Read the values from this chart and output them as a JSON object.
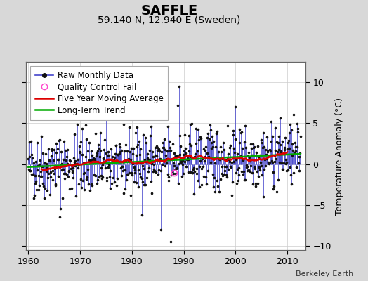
{
  "title": "SAFFLE",
  "subtitle": "59.140 N, 12.940 E (Sweden)",
  "ylabel": "Temperature Anomaly (°C)",
  "credit": "Berkeley Earth",
  "xlim": [
    1959.5,
    2013.5
  ],
  "ylim": [
    -10.5,
    12.5
  ],
  "yticks": [
    -10,
    -5,
    0,
    5,
    10
  ],
  "xticks": [
    1960,
    1970,
    1980,
    1990,
    2000,
    2010
  ],
  "seed": 42,
  "bg_color": "#d8d8d8",
  "plot_bg_color": "#ffffff",
  "raw_line_color": "#4444cc",
  "raw_dot_color": "#111111",
  "moving_avg_color": "#dd0000",
  "trend_color": "#00aa00",
  "qc_fail_color": "#ff44cc",
  "title_fontsize": 14,
  "subtitle_fontsize": 10,
  "ylabel_fontsize": 9,
  "tick_fontsize": 9,
  "legend_fontsize": 8.5
}
